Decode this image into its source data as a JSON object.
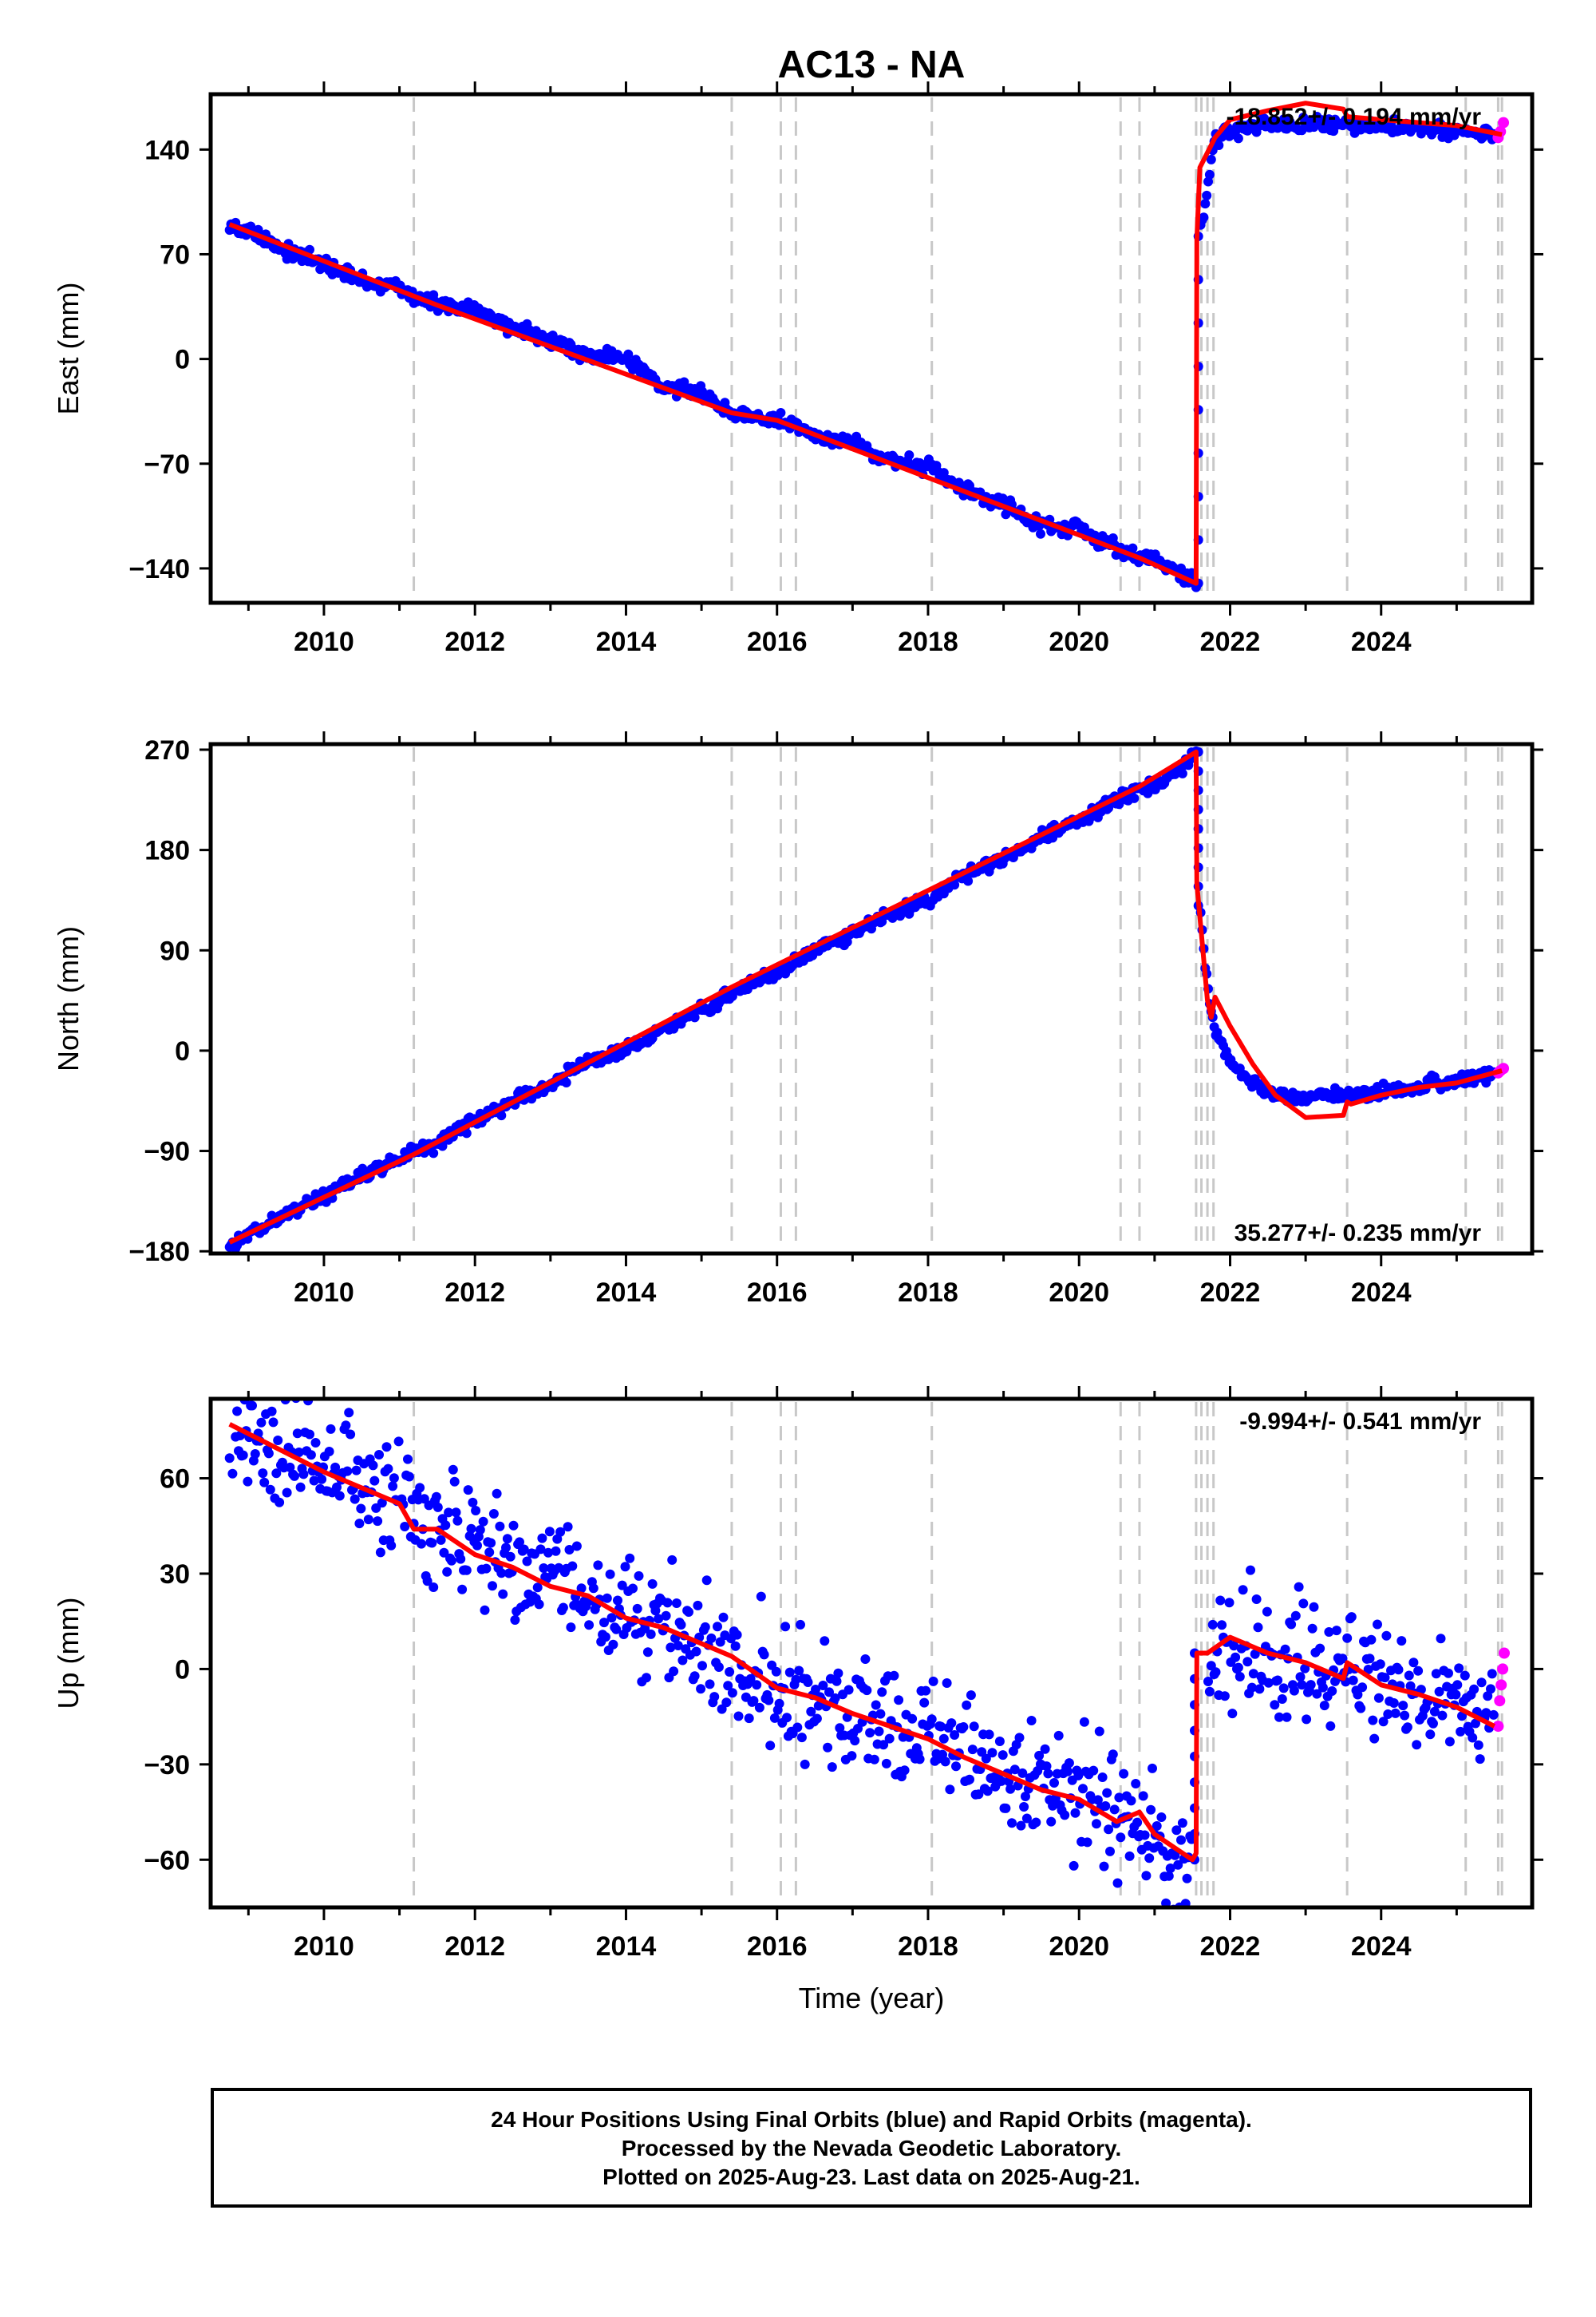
{
  "title": "AC13 - NA",
  "footer": {
    "line1": "24 Hour Positions Using Final Orbits (blue) and Rapid Orbits (magenta).",
    "line2": "Processed by the Nevada Geodetic Laboratory.",
    "line3": "Plotted on 2025-Aug-23. Last data on 2025-Aug-21."
  },
  "colors": {
    "final_orbits": "#0000ff",
    "rapid_orbits": "#ff00ff",
    "model": "#ff0000",
    "offset_lines": "#c8c8c8"
  },
  "chart_data": [
    {
      "type": "scatter",
      "component": "east",
      "ylabel": "East (mm)",
      "xlabel": "",
      "xlim": [
        2008.5,
        2026.0
      ],
      "ylim": [
        -163,
        177
      ],
      "yticks": [
        -140,
        -70,
        0,
        70,
        140
      ],
      "xticks": [
        2010,
        2012,
        2014,
        2016,
        2018,
        2020,
        2022,
        2024
      ],
      "rate_label": "-18.852+/- 0.194 mm/yr",
      "rate_position": "top-right",
      "offset_epochs": [
        2011.19,
        2015.4,
        2016.05,
        2016.25,
        2018.05,
        2020.55,
        2020.8,
        2021.55,
        2021.62,
        2021.7,
        2021.78,
        2023.55,
        2025.12,
        2025.55,
        2025.6
      ],
      "series": [
        {
          "name": "Final Orbits (blue)",
          "x": [
            2008.75,
            2009.0,
            2009.5,
            2010.0,
            2010.5,
            2011.0,
            2011.19,
            2011.5,
            2012.0,
            2012.5,
            2013.0,
            2013.5,
            2014.0,
            2014.5,
            2015.0,
            2015.4,
            2016.0,
            2016.5,
            2017.0,
            2017.5,
            2018.0,
            2018.5,
            2019.0,
            2019.5,
            2020.0,
            2020.5,
            2020.8,
            2021.0,
            2021.3,
            2021.55,
            2021.6,
            2021.8,
            2022.0,
            2022.5,
            2023.0,
            2023.5,
            2024.0,
            2024.5,
            2025.0,
            2025.5
          ],
          "y": [
            90,
            85,
            73,
            63,
            52,
            48,
            42,
            36,
            33,
            20,
            14,
            2,
            0,
            -18,
            -22,
            -36,
            -41,
            -52,
            -55,
            -68,
            -72,
            -89,
            -97,
            -111,
            -114,
            -127,
            -133,
            -134,
            -142,
            -150,
            82,
            148,
            152,
            156,
            158,
            156,
            156,
            155,
            152,
            149
          ]
        },
        {
          "name": "Rapid Orbits (magenta)",
          "x": [
            2025.55,
            2025.58,
            2025.62
          ],
          "y": [
            148,
            152,
            158
          ]
        },
        {
          "name": "Model (red)",
          "x": [
            2008.75,
            2011.19,
            2011.5,
            2015.4,
            2016.0,
            2020.8,
            2021.55,
            2021.56,
            2021.6,
            2021.8,
            2022.0,
            2022.5,
            2023.0,
            2023.5,
            2023.55,
            2024.0,
            2025.0,
            2025.6
          ],
          "y": [
            90,
            42,
            36,
            -36,
            -41,
            -133,
            -150,
            80,
            128,
            148,
            160,
            166,
            171,
            167,
            162,
            160,
            156,
            150
          ]
        }
      ]
    },
    {
      "type": "scatter",
      "component": "north",
      "ylabel": "North (mm)",
      "xlabel": "",
      "xlim": [
        2008.5,
        2026.0
      ],
      "ylim": [
        -182,
        275
      ],
      "yticks": [
        -180,
        -90,
        0,
        90,
        180,
        270
      ],
      "xticks": [
        2010,
        2012,
        2014,
        2016,
        2018,
        2020,
        2022,
        2024
      ],
      "rate_label": "35.277+/- 0.235 mm/yr",
      "rate_position": "bottom-right",
      "offset_epochs": [
        2011.19,
        2015.4,
        2016.05,
        2016.25,
        2018.05,
        2020.55,
        2020.8,
        2021.55,
        2021.62,
        2021.7,
        2021.78,
        2023.55,
        2025.12,
        2025.55,
        2025.6
      ],
      "series": [
        {
          "name": "Final Orbits (blue)",
          "x": [
            2008.75,
            2009.0,
            2009.5,
            2010.0,
            2010.5,
            2011.0,
            2011.5,
            2012.0,
            2012.5,
            2013.0,
            2013.5,
            2014.0,
            2014.5,
            2015.0,
            2015.5,
            2016.0,
            2016.5,
            2017.0,
            2017.5,
            2018.0,
            2018.5,
            2019.0,
            2019.5,
            2020.0,
            2020.5,
            2021.0,
            2021.3,
            2021.55,
            2021.6,
            2021.7,
            2021.8,
            2022.0,
            2022.3,
            2022.6,
            2023.0,
            2023.5,
            2024.0,
            2024.5,
            2025.0,
            2025.5
          ],
          "y": [
            -172,
            -165,
            -147,
            -130,
            -112,
            -97,
            -82,
            -63,
            -45,
            -30,
            -10,
            0,
            20,
            37,
            55,
            70,
            90,
            105,
            122,
            135,
            158,
            174,
            192,
            205,
            225,
            238,
            250,
            268,
            130,
            60,
            20,
            -10,
            -30,
            -40,
            -43,
            -40,
            -38,
            -32,
            -27,
            -20
          ]
        },
        {
          "name": "Rapid Orbits (magenta)",
          "x": [
            2025.55,
            2025.58,
            2025.62
          ],
          "y": [
            -20,
            -18,
            -16
          ]
        },
        {
          "name": "Model (red)",
          "x": [
            2008.75,
            2011.19,
            2015.4,
            2020.8,
            2021.55,
            2021.56,
            2021.7,
            2021.75,
            2021.8,
            2022.0,
            2022.3,
            2022.6,
            2023.0,
            2023.5,
            2023.55,
            2023.6,
            2024.0,
            2024.5,
            2025.0,
            2025.6
          ],
          "y": [
            -172,
            -93,
            57,
            237,
            268,
            150,
            45,
            30,
            48,
            22,
            -12,
            -40,
            -60,
            -58,
            -46,
            -48,
            -40,
            -33,
            -29,
            -18
          ]
        }
      ]
    },
    {
      "type": "scatter",
      "component": "up",
      "ylabel": "Up (mm)",
      "xlabel": "Time (year)",
      "xlim": [
        2008.5,
        2026.0
      ],
      "ylim": [
        -75,
        85
      ],
      "yticks": [
        -60,
        -30,
        0,
        30,
        60
      ],
      "xticks": [
        2010,
        2012,
        2014,
        2016,
        2018,
        2020,
        2022,
        2024
      ],
      "rate_label": "-9.994+/- 0.541 mm/yr",
      "rate_position": "top-right",
      "offset_epochs": [
        2011.19,
        2015.4,
        2016.05,
        2016.25,
        2018.05,
        2020.55,
        2020.8,
        2021.55,
        2021.62,
        2021.7,
        2021.78,
        2023.55,
        2025.12,
        2025.55,
        2025.6
      ],
      "series": [
        {
          "name": "Final Orbits (blue)",
          "x": [
            2008.75,
            2009.0,
            2009.5,
            2010.0,
            2010.5,
            2011.0,
            2011.5,
            2012.0,
            2012.5,
            2013.0,
            2013.5,
            2014.0,
            2014.5,
            2015.0,
            2015.5,
            2016.0,
            2016.5,
            2017.0,
            2017.5,
            2018.0,
            2018.5,
            2019.0,
            2019.5,
            2020.0,
            2020.5,
            2021.0,
            2021.5,
            2021.7,
            2022.0,
            2022.5,
            2023.0,
            2023.5,
            2024.0,
            2024.5,
            2025.0,
            2025.5
          ],
          "y": [
            78,
            72,
            67,
            62,
            57,
            52,
            43,
            38,
            33,
            28,
            23,
            18,
            13,
            9,
            4,
            -4,
            -9,
            -12,
            -17,
            -22,
            -27,
            -32,
            -38,
            -40,
            -46,
            -50,
            -60,
            5,
            10,
            6,
            3,
            -2,
            -4,
            -8,
            -12,
            -18
          ]
        },
        {
          "name": "Rapid Orbits (magenta)",
          "x": [
            2025.55,
            2025.57,
            2025.59,
            2025.61,
            2025.63
          ],
          "y": [
            -18,
            -10,
            -5,
            0,
            5
          ]
        },
        {
          "name": "Model (red)",
          "x": [
            2008.75,
            2009.5,
            2010.0,
            2010.5,
            2011.0,
            2011.19,
            2011.5,
            2012.0,
            2012.5,
            2013.0,
            2013.5,
            2014.0,
            2014.5,
            2015.0,
            2015.4,
            2016.0,
            2016.5,
            2017.0,
            2017.5,
            2018.0,
            2018.5,
            2019.0,
            2019.5,
            2020.0,
            2020.5,
            2020.8,
            2021.0,
            2021.5,
            2021.55,
            2021.56,
            2021.7,
            2022.0,
            2022.5,
            2023.0,
            2023.5,
            2023.55,
            2024.0,
            2024.5,
            2025.0,
            2025.5
          ],
          "y": [
            77,
            68,
            62,
            57,
            52,
            44,
            44,
            36,
            32,
            26,
            23,
            16,
            13,
            8,
            4,
            -6,
            -9,
            -14,
            -18,
            -22,
            -28,
            -33,
            -38,
            -41,
            -48,
            -45,
            -52,
            -60,
            -58,
            5,
            5,
            10,
            5,
            2,
            -3,
            2,
            -5,
            -8,
            -12,
            -18
          ]
        }
      ]
    }
  ]
}
